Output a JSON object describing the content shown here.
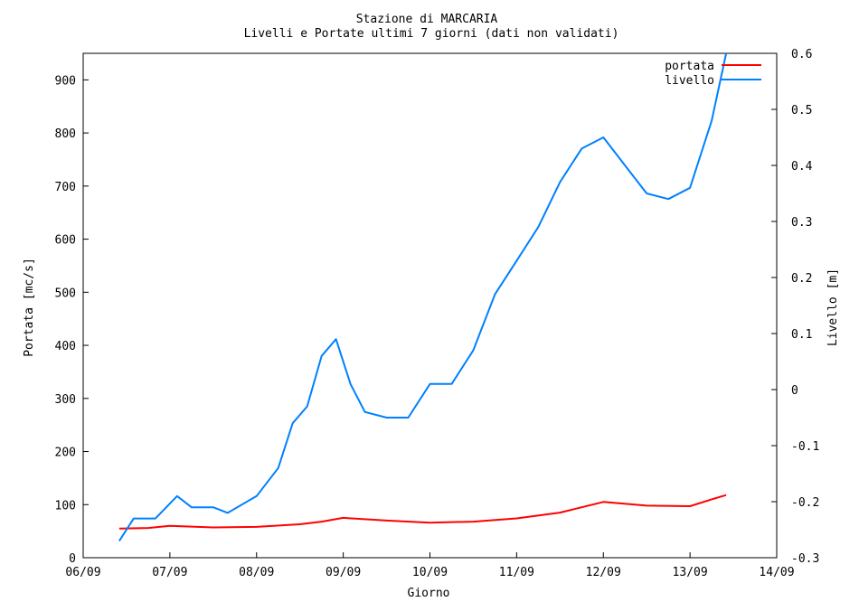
{
  "chart_data": {
    "type": "line",
    "title": "Stazione di MARCARIA",
    "subtitle": "Livelli e Portate ultimi 7 giorni (dati non validati)",
    "xlabel": "Giorno",
    "ylabel_left": "Portata [mc/s]",
    "ylabel_right": "Livello [m]",
    "x_ticks": [
      "06/09",
      "07/09",
      "08/09",
      "09/09",
      "10/09",
      "11/09",
      "12/09",
      "13/09",
      "14/09"
    ],
    "xlim_days": [
      0,
      8
    ],
    "ylim_left": [
      0,
      950
    ],
    "yticks_left": [
      0,
      100,
      200,
      300,
      400,
      500,
      600,
      700,
      800,
      900
    ],
    "ylim_right": [
      -0.3,
      0.6
    ],
    "yticks_right": [
      "-0.3",
      "-0.2",
      "-0.1",
      "0",
      "0.1",
      "0.2",
      "0.3",
      "0.4",
      "0.5",
      "0.6"
    ],
    "legend_position": "top-right",
    "series": [
      {
        "name": "portata",
        "axis": "left",
        "color": "#ff0000",
        "x": [
          "06/09 10:00",
          "06/09 18:00",
          "07/09 00:00",
          "07/09 12:00",
          "08/09 00:00",
          "08/09 12:00",
          "08/09 18:00",
          "09/09 00:00",
          "09/09 12:00",
          "10/09 00:00",
          "10/09 12:00",
          "11/09 00:00",
          "11/09 12:00",
          "11/09 18:00",
          "12/09 00:00",
          "12/09 12:00",
          "13/09 00:00",
          "13/09 06:00",
          "13/09 10:00"
        ],
        "values": [
          55,
          56,
          60,
          57,
          58,
          63,
          68,
          75,
          70,
          66,
          68,
          74,
          85,
          95,
          105,
          98,
          97,
          110,
          118
        ]
      },
      {
        "name": "livello",
        "axis": "right",
        "color": "#0080ff",
        "x": [
          "06/09 10:00",
          "06/09 14:00",
          "06/09 20:00",
          "07/09 02:00",
          "07/09 06:00",
          "07/09 12:00",
          "07/09 16:00",
          "08/09 00:00",
          "08/09 06:00",
          "08/09 10:00",
          "08/09 14:00",
          "08/09 18:00",
          "08/09 22:00",
          "09/09 02:00",
          "09/09 06:00",
          "09/09 12:00",
          "09/09 18:00",
          "10/09 00:00",
          "10/09 06:00",
          "10/09 12:00",
          "10/09 18:00",
          "11/09 00:00",
          "11/09 06:00",
          "11/09 12:00",
          "11/09 18:00",
          "12/09 00:00",
          "12/09 06:00",
          "12/09 12:00",
          "12/09 18:00",
          "13/09 00:00",
          "13/09 06:00",
          "13/09 10:00"
        ],
        "values": [
          -0.27,
          -0.23,
          -0.23,
          -0.19,
          -0.21,
          -0.21,
          -0.22,
          -0.19,
          -0.14,
          -0.06,
          -0.03,
          0.06,
          0.09,
          0.01,
          -0.04,
          -0.05,
          -0.05,
          0.01,
          0.01,
          0.07,
          0.17,
          0.23,
          0.29,
          0.37,
          0.43,
          0.45,
          0.4,
          0.35,
          0.34,
          0.36,
          0.48,
          0.6
        ]
      }
    ]
  }
}
